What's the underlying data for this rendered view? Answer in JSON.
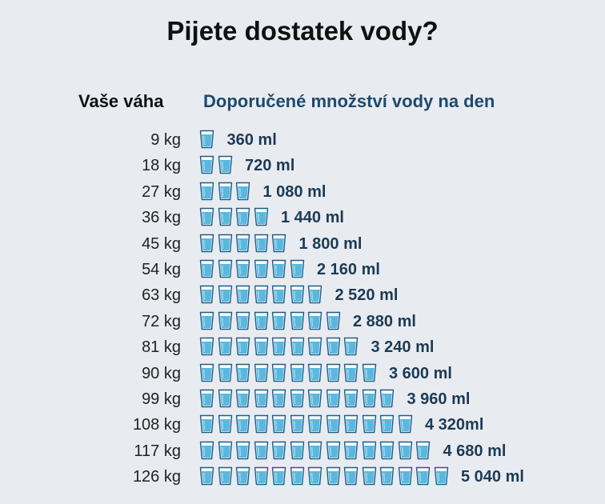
{
  "title": "Pijete dostatek vody?",
  "header": {
    "weight_label": "Vaše váha",
    "water_label": "Doporučené množství vody na den"
  },
  "icon": "water-glass-icon",
  "colors": {
    "background": "#e8ecf1",
    "glass_water": "#5ab8de",
    "glass_outline": "#1f5b86",
    "amount_text": "#1d3a55",
    "header_accent": "#1d4a6e"
  },
  "chart_data": {
    "type": "bar",
    "title": "Pijete dostatek vody?",
    "xlabel": "Vaše váha",
    "ylabel": "Doporučené množství vody na den",
    "categories": [
      "9 kg",
      "18 kg",
      "27 kg",
      "36 kg",
      "45 kg",
      "54 kg",
      "63 kg",
      "72 kg",
      "81 kg",
      "90 kg",
      "99 kg",
      "108 kg",
      "117 kg",
      "126 kg"
    ],
    "values": [
      360,
      720,
      1080,
      1440,
      1800,
      2160,
      2520,
      2880,
      3240,
      3600,
      3960,
      4320,
      4680,
      5040
    ],
    "glasses": [
      1,
      2,
      3,
      4,
      5,
      6,
      7,
      8,
      9,
      10,
      11,
      12,
      13,
      14
    ],
    "value_labels": [
      "360 ml",
      "720 ml",
      "1 080 ml",
      "1 440 ml",
      "1 800 ml",
      "2 160 ml",
      "2 520 ml",
      "2 880 ml",
      "3 240 ml",
      "3 600 ml",
      "3 960 ml",
      "4 320ml",
      "4 680 ml",
      "5 040 ml"
    ],
    "unit": "ml"
  }
}
